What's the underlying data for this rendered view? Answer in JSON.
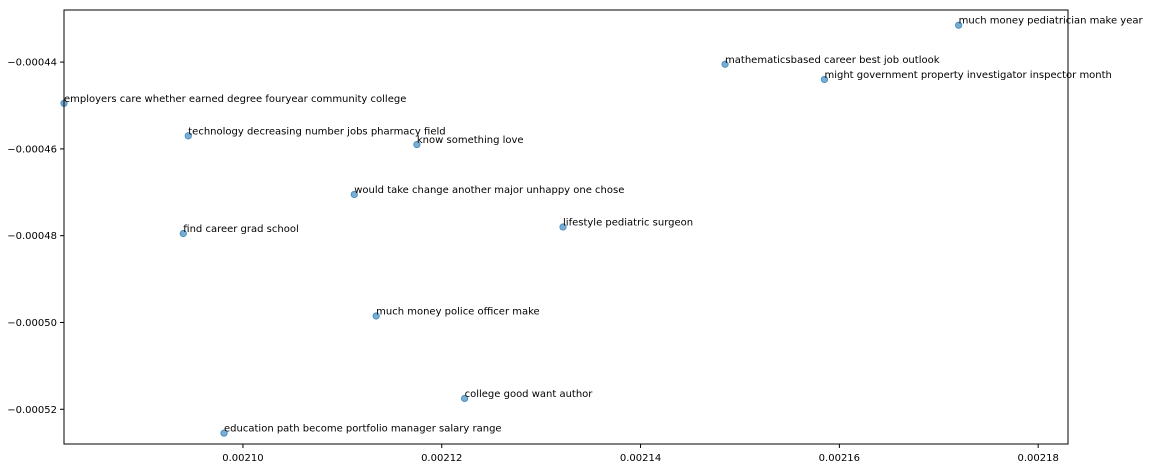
{
  "chart_data": {
    "type": "scatter",
    "title": "",
    "xlabel": "",
    "ylabel": "",
    "grid": false,
    "xlim": [
      0.002082,
      0.002183
    ],
    "ylim": [
      -0.000528,
      -0.000428
    ],
    "x_ticks": [
      0.0021,
      0.00212,
      0.00214,
      0.00216,
      0.00218
    ],
    "x_tick_labels": [
      "0.00210",
      "0.00212",
      "0.00214",
      "0.00216",
      "0.00218"
    ],
    "y_ticks": [
      -0.00044,
      -0.00046,
      -0.00048,
      -0.0005,
      -0.00052
    ],
    "y_tick_labels": [
      "−0.00044",
      "−0.00046",
      "−0.00048",
      "−0.00050",
      "−0.00052"
    ],
    "colors": {
      "marker_fill": "#1f77b4",
      "marker_opacity": "0.6",
      "axis": "#000000"
    },
    "points": [
      {
        "label": "much money pediatrician make year",
        "x": 0.002172,
        "y": -0.0004315
      },
      {
        "label": "mathematicsbased career best job outlook",
        "x": 0.0021485,
        "y": -0.0004405
      },
      {
        "label": "might government property investigator inspector month",
        "x": 0.0021585,
        "y": -0.000444
      },
      {
        "label": "employers care whether earned degree fouryear community college",
        "x": 0.002082,
        "y": -0.0004495
      },
      {
        "label": "technology decreasing number jobs pharmacy field",
        "x": 0.0020945,
        "y": -0.000457
      },
      {
        "label": "know something love",
        "x": 0.0021175,
        "y": -0.000459
      },
      {
        "label": "would take change another major unhappy one chose",
        "x": 0.0021112,
        "y": -0.0004705
      },
      {
        "label": "lifestyle pediatric surgeon",
        "x": 0.0021322,
        "y": -0.000478
      },
      {
        "label": "find career grad school",
        "x": 0.002094,
        "y": -0.0004795
      },
      {
        "label": "much money police officer make",
        "x": 0.0021134,
        "y": -0.0004985
      },
      {
        "label": "college good want author",
        "x": 0.0021223,
        "y": -0.0005175
      },
      {
        "label": "education path become portfolio manager salary range",
        "x": 0.0020981,
        "y": -0.0005255
      }
    ]
  }
}
